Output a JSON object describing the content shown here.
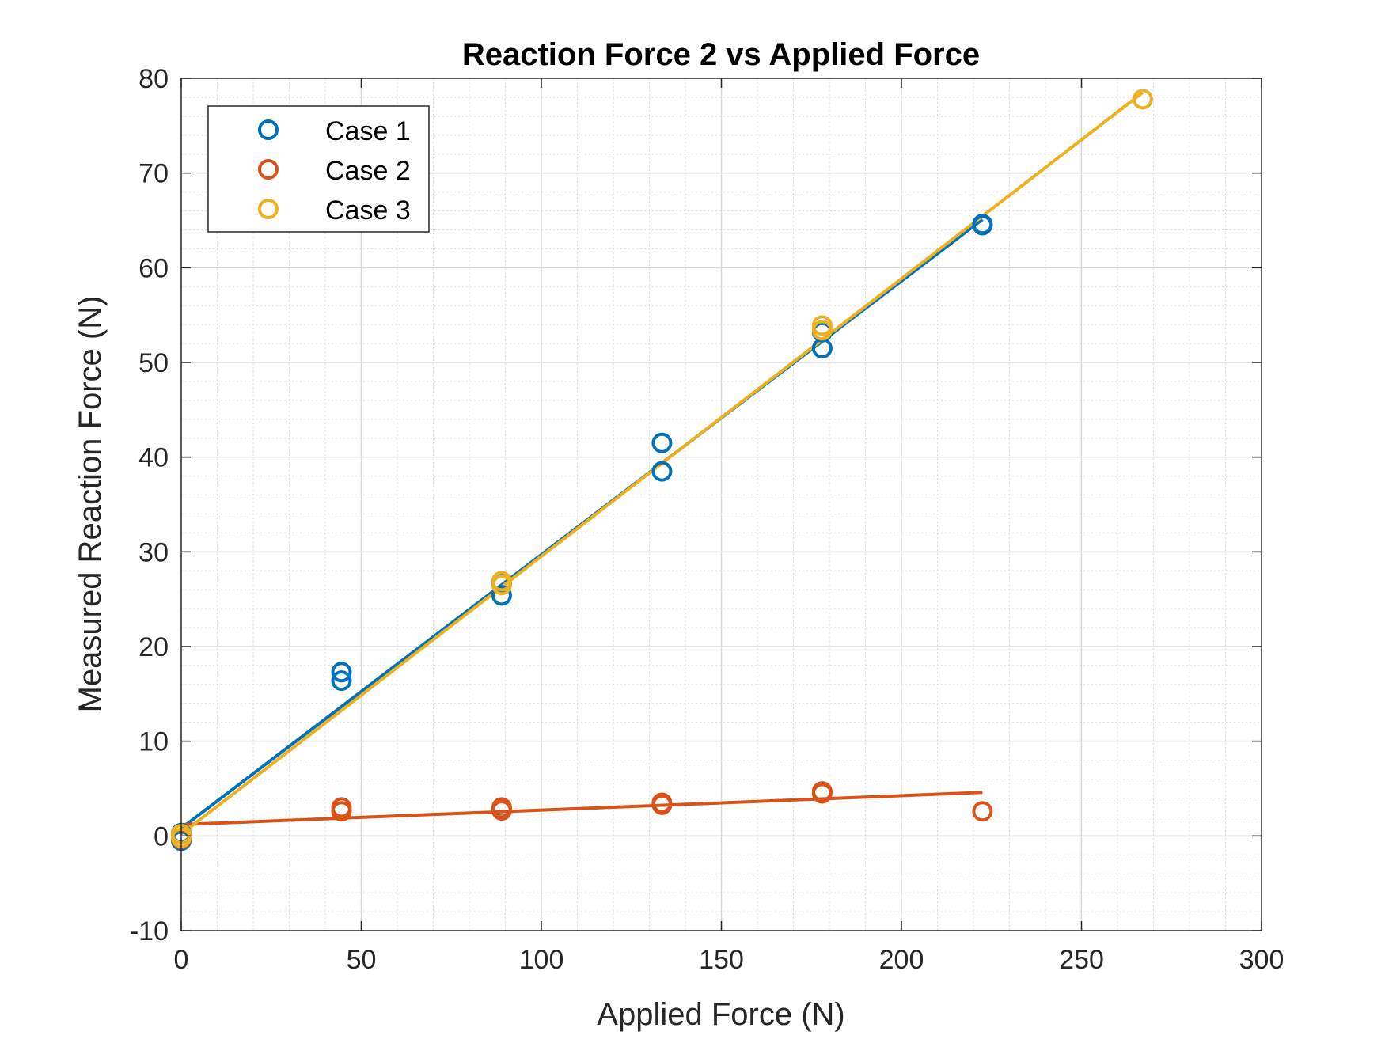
{
  "chart_data": {
    "type": "scatter",
    "title": "Reaction Force 2 vs Applied Force",
    "xlabel": "Applied Force (N)",
    "ylabel": "Measured Reaction Force (N)",
    "xlim": [
      0,
      300
    ],
    "ylim": [
      -10,
      80
    ],
    "xticks": [
      0,
      50,
      100,
      150,
      200,
      250,
      300
    ],
    "yticks": [
      -10,
      0,
      10,
      20,
      30,
      40,
      50,
      60,
      70,
      80
    ],
    "xtick_labels": [
      "0",
      "50",
      "100",
      "150",
      "200",
      "250",
      "300"
    ],
    "ytick_labels": [
      "-10",
      "0",
      "10",
      "20",
      "30",
      "40",
      "50",
      "60",
      "70",
      "80"
    ],
    "grid": true,
    "minor_grid": true,
    "legend_position": "top-left",
    "series": [
      {
        "name": "Case 1",
        "color": "#0072BD",
        "points": [
          [
            0,
            -0.5
          ],
          [
            0,
            0.3
          ],
          [
            44.5,
            17.3
          ],
          [
            44.5,
            16.4
          ],
          [
            89,
            25.4
          ],
          [
            89,
            26.6
          ],
          [
            133.5,
            41.5
          ],
          [
            133.5,
            38.5
          ],
          [
            178,
            53.2
          ],
          [
            178,
            51.5
          ],
          [
            222.5,
            64.5
          ],
          [
            222.5,
            64.6
          ]
        ],
        "fit": [
          [
            0,
            0.8
          ],
          [
            222.5,
            65.1
          ]
        ]
      },
      {
        "name": "Case 2",
        "color": "#D95319",
        "points": [
          [
            0,
            -0.3
          ],
          [
            0,
            0.2
          ],
          [
            44.5,
            3.0
          ],
          [
            44.5,
            2.6
          ],
          [
            89,
            2.7
          ],
          [
            89,
            3.0
          ],
          [
            133.5,
            3.5
          ],
          [
            133.5,
            3.3
          ],
          [
            178,
            4.5
          ],
          [
            178,
            4.7
          ],
          [
            222.5,
            2.6
          ]
        ],
        "fit": [
          [
            0,
            1.2
          ],
          [
            222.5,
            4.6
          ]
        ]
      },
      {
        "name": "Case 3",
        "color": "#EDB120",
        "points": [
          [
            0,
            0.2
          ],
          [
            0,
            -0.2
          ],
          [
            89,
            26.9
          ],
          [
            89,
            26.5
          ],
          [
            178,
            53.9
          ],
          [
            178,
            53.4
          ],
          [
            267,
            77.8
          ]
        ],
        "fit": [
          [
            0,
            0.2
          ],
          [
            267,
            78.5
          ]
        ]
      }
    ]
  }
}
